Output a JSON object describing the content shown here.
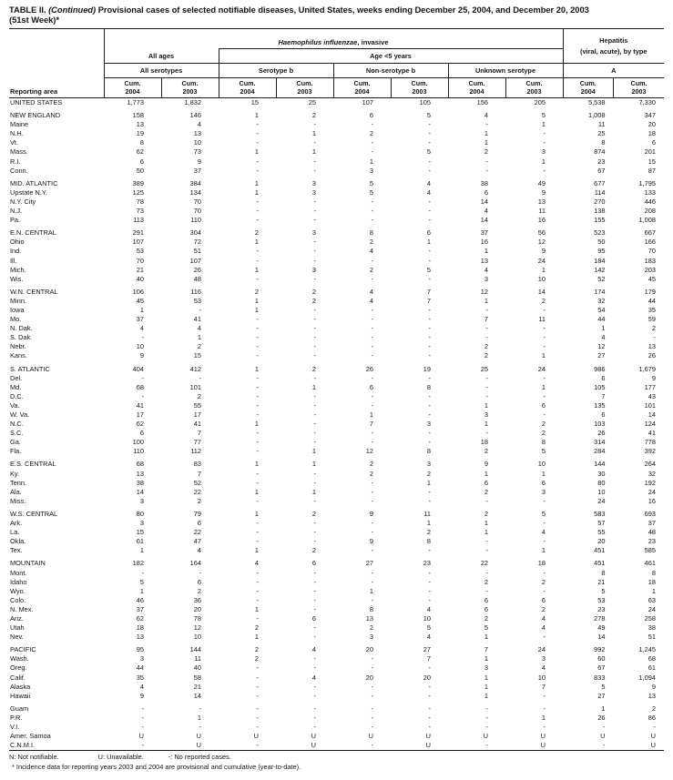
{
  "title": {
    "line1": "TABLE II. (Continued) Provisional cases of selected notifiable diseases, United States, weeks ending December 25, 2004, and December 20, 2003",
    "line1_bold_prefix": "TABLE II.",
    "line1_continued": "(Continued)",
    "line1_rest": "Provisional cases of selected notifiable diseases, United States, weeks ending December 25, 2004, and December 20, 2003",
    "line2": "(51st Week)*"
  },
  "header": {
    "reporting_area": "Reporting area",
    "hflu_italic": "Haemophilus influenzae",
    "hflu_rest": ", invasive",
    "hepatitis_line1": "Hepatitis",
    "hepatitis_line2": "(viral, acute), by type",
    "all_ages": "All ages",
    "age_under5": "Age <5 years",
    "all_serotypes": "All serotypes",
    "serotype_b": "Serotype b",
    "non_serotype_b": "Non-serotype b",
    "unknown_serotype": "Unknown serotype",
    "hep_a": "A",
    "cum_label": "Cum.",
    "cum_years": [
      "2004",
      "2003"
    ]
  },
  "rows": [
    {
      "area": "UNITED STATES",
      "gap": false,
      "values": [
        "1,773",
        "1,832",
        "15",
        "25",
        "107",
        "105",
        "156",
        "205",
        "5,538",
        "7,330"
      ]
    },
    {
      "area": "NEW ENGLAND",
      "gap": true,
      "values": [
        "158",
        "146",
        "1",
        "2",
        "6",
        "5",
        "4",
        "5",
        "1,008",
        "347"
      ]
    },
    {
      "area": "Maine",
      "gap": false,
      "values": [
        "13",
        "4",
        "-",
        "-",
        "-",
        "-",
        "-",
        "1",
        "11",
        "20"
      ]
    },
    {
      "area": "N.H.",
      "gap": false,
      "values": [
        "19",
        "13",
        "-",
        "1",
        "2",
        "-",
        "1",
        "-",
        "25",
        "18"
      ]
    },
    {
      "area": "Vt.",
      "gap": false,
      "values": [
        "8",
        "10",
        "-",
        "-",
        "-",
        "-",
        "1",
        "-",
        "8",
        "6"
      ]
    },
    {
      "area": "Mass.",
      "gap": false,
      "values": [
        "62",
        "73",
        "1",
        "1",
        "-",
        "5",
        "2",
        "3",
        "874",
        "201"
      ]
    },
    {
      "area": "R.I.",
      "gap": false,
      "values": [
        "6",
        "9",
        "-",
        "-",
        "1",
        "-",
        "-",
        "1",
        "23",
        "15"
      ]
    },
    {
      "area": "Conn.",
      "gap": false,
      "values": [
        "50",
        "37",
        "-",
        "-",
        "3",
        "-",
        "-",
        "-",
        "67",
        "87"
      ]
    },
    {
      "area": "MID. ATLANTIC",
      "gap": true,
      "values": [
        "389",
        "384",
        "1",
        "3",
        "5",
        "4",
        "38",
        "49",
        "677",
        "1,795"
      ]
    },
    {
      "area": "Upstate N.Y.",
      "gap": false,
      "values": [
        "125",
        "134",
        "1",
        "3",
        "5",
        "4",
        "6",
        "9",
        "114",
        "133"
      ]
    },
    {
      "area": "N.Y. City",
      "gap": false,
      "values": [
        "78",
        "70",
        "-",
        "-",
        "-",
        "-",
        "14",
        "13",
        "270",
        "446"
      ]
    },
    {
      "area": "N.J.",
      "gap": false,
      "values": [
        "73",
        "70",
        "-",
        "-",
        "-",
        "-",
        "4",
        "11",
        "138",
        "208"
      ]
    },
    {
      "area": "Pa.",
      "gap": false,
      "values": [
        "113",
        "110",
        "-",
        "-",
        "-",
        "-",
        "14",
        "16",
        "155",
        "1,008"
      ]
    },
    {
      "area": "E.N. CENTRAL",
      "gap": true,
      "values": [
        "291",
        "304",
        "2",
        "3",
        "8",
        "6",
        "37",
        "56",
        "523",
        "667"
      ]
    },
    {
      "area": "Ohio",
      "gap": false,
      "values": [
        "107",
        "72",
        "1",
        "-",
        "2",
        "1",
        "16",
        "12",
        "50",
        "166"
      ]
    },
    {
      "area": "Ind.",
      "gap": false,
      "values": [
        "53",
        "51",
        "-",
        "-",
        "4",
        "-",
        "1",
        "9",
        "95",
        "70"
      ]
    },
    {
      "area": "Ill.",
      "gap": false,
      "values": [
        "70",
        "107",
        "-",
        "-",
        "-",
        "-",
        "13",
        "24",
        "184",
        "183"
      ]
    },
    {
      "area": "Mich.",
      "gap": false,
      "values": [
        "21",
        "26",
        "1",
        "3",
        "2",
        "5",
        "4",
        "1",
        "142",
        "203"
      ]
    },
    {
      "area": "Wis.",
      "gap": false,
      "values": [
        "40",
        "48",
        "-",
        "-",
        "-",
        "-",
        "3",
        "10",
        "52",
        "45"
      ]
    },
    {
      "area": "W.N. CENTRAL",
      "gap": true,
      "values": [
        "106",
        "116",
        "2",
        "2",
        "4",
        "7",
        "12",
        "14",
        "174",
        "179"
      ]
    },
    {
      "area": "Minn.",
      "gap": false,
      "values": [
        "45",
        "53",
        "1",
        "2",
        "4",
        "7",
        "1",
        "2",
        "32",
        "44"
      ]
    },
    {
      "area": "Iowa",
      "gap": false,
      "values": [
        "1",
        "-",
        "1",
        "-",
        "-",
        "-",
        "-",
        "-",
        "54",
        "35"
      ]
    },
    {
      "area": "Mo.",
      "gap": false,
      "values": [
        "37",
        "41",
        "-",
        "-",
        "-",
        "-",
        "7",
        "11",
        "44",
        "59"
      ]
    },
    {
      "area": "N. Dak.",
      "gap": false,
      "values": [
        "4",
        "4",
        "-",
        "-",
        "-",
        "-",
        "-",
        "-",
        "1",
        "2"
      ]
    },
    {
      "area": "S. Dak.",
      "gap": false,
      "values": [
        "-",
        "1",
        "-",
        "-",
        "-",
        "-",
        "-",
        "-",
        "4",
        "-"
      ]
    },
    {
      "area": "Nebr.",
      "gap": false,
      "values": [
        "10",
        "2",
        "-",
        "-",
        "-",
        "-",
        "2",
        "-",
        "12",
        "13"
      ]
    },
    {
      "area": "Kans.",
      "gap": false,
      "values": [
        "9",
        "15",
        "-",
        "-",
        "-",
        "-",
        "2",
        "1",
        "27",
        "26"
      ]
    },
    {
      "area": "S. ATLANTIC",
      "gap": true,
      "values": [
        "404",
        "412",
        "1",
        "2",
        "26",
        "19",
        "25",
        "24",
        "986",
        "1,679"
      ]
    },
    {
      "area": "Del.",
      "gap": false,
      "values": [
        "-",
        "-",
        "-",
        "-",
        "-",
        "-",
        "-",
        "-",
        "6",
        "9"
      ]
    },
    {
      "area": "Md.",
      "gap": false,
      "values": [
        "68",
        "101",
        "-",
        "1",
        "6",
        "8",
        "-",
        "1",
        "105",
        "177"
      ]
    },
    {
      "area": "D.C.",
      "gap": false,
      "values": [
        "-",
        "2",
        "-",
        "-",
        "-",
        "-",
        "-",
        "-",
        "7",
        "43"
      ]
    },
    {
      "area": "Va.",
      "gap": false,
      "values": [
        "41",
        "55",
        "-",
        "-",
        "-",
        "-",
        "1",
        "6",
        "135",
        "101"
      ]
    },
    {
      "area": "W. Va.",
      "gap": false,
      "values": [
        "17",
        "17",
        "-",
        "-",
        "1",
        "-",
        "3",
        "-",
        "6",
        "14"
      ]
    },
    {
      "area": "N.C.",
      "gap": false,
      "values": [
        "62",
        "41",
        "1",
        "-",
        "7",
        "3",
        "1",
        "2",
        "103",
        "124"
      ]
    },
    {
      "area": "S.C.",
      "gap": false,
      "values": [
        "6",
        "7",
        "-",
        "-",
        "-",
        "-",
        "-",
        "2",
        "26",
        "41"
      ]
    },
    {
      "area": "Ga.",
      "gap": false,
      "values": [
        "100",
        "77",
        "-",
        "-",
        "-",
        "-",
        "18",
        "8",
        "314",
        "778"
      ]
    },
    {
      "area": "Fla.",
      "gap": false,
      "values": [
        "110",
        "112",
        "-",
        "1",
        "12",
        "8",
        "2",
        "5",
        "284",
        "392"
      ]
    },
    {
      "area": "E.S. CENTRAL",
      "gap": true,
      "values": [
        "68",
        "83",
        "1",
        "1",
        "2",
        "3",
        "9",
        "10",
        "144",
        "264"
      ]
    },
    {
      "area": "Ky.",
      "gap": false,
      "values": [
        "13",
        "7",
        "-",
        "-",
        "2",
        "2",
        "1",
        "1",
        "30",
        "32"
      ]
    },
    {
      "area": "Tenn.",
      "gap": false,
      "values": [
        "38",
        "52",
        "-",
        "-",
        "-",
        "1",
        "6",
        "6",
        "80",
        "192"
      ]
    },
    {
      "area": "Ala.",
      "gap": false,
      "values": [
        "14",
        "22",
        "1",
        "1",
        "-",
        "-",
        "2",
        "3",
        "10",
        "24"
      ]
    },
    {
      "area": "Miss.",
      "gap": false,
      "values": [
        "3",
        "2",
        "-",
        "-",
        "-",
        "-",
        "-",
        "-",
        "24",
        "16"
      ]
    },
    {
      "area": "W.S. CENTRAL",
      "gap": true,
      "values": [
        "80",
        "79",
        "1",
        "2",
        "9",
        "11",
        "2",
        "5",
        "583",
        "693"
      ]
    },
    {
      "area": "Ark.",
      "gap": false,
      "values": [
        "3",
        "6",
        "-",
        "-",
        "-",
        "1",
        "1",
        "-",
        "57",
        "37"
      ]
    },
    {
      "area": "La.",
      "gap": false,
      "values": [
        "15",
        "22",
        "-",
        "-",
        "-",
        "2",
        "1",
        "4",
        "55",
        "48"
      ]
    },
    {
      "area": "Okla.",
      "gap": false,
      "values": [
        "61",
        "47",
        "-",
        "-",
        "9",
        "8",
        "-",
        "-",
        "20",
        "23"
      ]
    },
    {
      "area": "Tex.",
      "gap": false,
      "values": [
        "1",
        "4",
        "1",
        "2",
        "-",
        "-",
        "-",
        "1",
        "451",
        "585"
      ]
    },
    {
      "area": "MOUNTAIN",
      "gap": true,
      "values": [
        "182",
        "164",
        "4",
        "6",
        "27",
        "23",
        "22",
        "18",
        "451",
        "461"
      ]
    },
    {
      "area": "Mont.",
      "gap": false,
      "values": [
        "-",
        "-",
        "-",
        "-",
        "-",
        "-",
        "-",
        "-",
        "8",
        "8"
      ]
    },
    {
      "area": "Idaho",
      "gap": false,
      "values": [
        "5",
        "6",
        "-",
        "-",
        "-",
        "-",
        "2",
        "2",
        "21",
        "18"
      ]
    },
    {
      "area": "Wyo.",
      "gap": false,
      "values": [
        "1",
        "2",
        "-",
        "-",
        "1",
        "-",
        "-",
        "-",
        "5",
        "1"
      ]
    },
    {
      "area": "Colo.",
      "gap": false,
      "values": [
        "46",
        "36",
        "-",
        "-",
        "-",
        "-",
        "6",
        "6",
        "53",
        "63"
      ]
    },
    {
      "area": "N. Mex.",
      "gap": false,
      "values": [
        "37",
        "20",
        "1",
        "-",
        "8",
        "4",
        "6",
        "2",
        "23",
        "24"
      ]
    },
    {
      "area": "Ariz.",
      "gap": false,
      "values": [
        "62",
        "78",
        "-",
        "6",
        "13",
        "10",
        "2",
        "4",
        "278",
        "258"
      ]
    },
    {
      "area": "Utah",
      "gap": false,
      "values": [
        "18",
        "12",
        "2",
        "-",
        "2",
        "5",
        "5",
        "4",
        "49",
        "38"
      ]
    },
    {
      "area": "Nev.",
      "gap": false,
      "values": [
        "13",
        "10",
        "1",
        "-",
        "3",
        "4",
        "1",
        "-",
        "14",
        "51"
      ]
    },
    {
      "area": "PACIFIC",
      "gap": true,
      "values": [
        "95",
        "144",
        "2",
        "4",
        "20",
        "27",
        "7",
        "24",
        "992",
        "1,245"
      ]
    },
    {
      "area": "Wash.",
      "gap": false,
      "values": [
        "3",
        "11",
        "2",
        "-",
        "-",
        "7",
        "1",
        "3",
        "60",
        "68"
      ]
    },
    {
      "area": "Oreg.",
      "gap": false,
      "values": [
        "44",
        "40",
        "-",
        "-",
        "-",
        "-",
        "3",
        "4",
        "67",
        "61"
      ]
    },
    {
      "area": "Calif.",
      "gap": false,
      "values": [
        "35",
        "58",
        "-",
        "4",
        "20",
        "20",
        "1",
        "10",
        "833",
        "1,094"
      ]
    },
    {
      "area": "Alaska",
      "gap": false,
      "values": [
        "4",
        "21",
        "-",
        "-",
        "-",
        "-",
        "1",
        "7",
        "5",
        "9"
      ]
    },
    {
      "area": "Hawaii",
      "gap": false,
      "values": [
        "9",
        "14",
        "-",
        "-",
        "-",
        "-",
        "1",
        "-",
        "27",
        "13"
      ]
    },
    {
      "area": "Guam",
      "gap": true,
      "values": [
        "-",
        "-",
        "-",
        "-",
        "-",
        "-",
        "-",
        "-",
        "1",
        "2"
      ]
    },
    {
      "area": "P.R.",
      "gap": false,
      "values": [
        "-",
        "1",
        "-",
        "-",
        "-",
        "-",
        "-",
        "1",
        "26",
        "86"
      ]
    },
    {
      "area": "V.I.",
      "gap": false,
      "values": [
        "-",
        "-",
        "-",
        "-",
        "-",
        "-",
        "-",
        "-",
        "-",
        "-"
      ]
    },
    {
      "area": "Amer. Samoa",
      "gap": false,
      "values": [
        "U",
        "U",
        "U",
        "U",
        "U",
        "U",
        "U",
        "U",
        "U",
        "U"
      ]
    },
    {
      "area": "C.N.M.I.",
      "gap": false,
      "values": [
        "-",
        "U",
        "-",
        "U",
        "-",
        "U",
        "-",
        "U",
        "-",
        "U"
      ]
    }
  ],
  "footnotes": {
    "n": "N: Not notifiable.",
    "u": "U: Unavailable.",
    "dash": "-: No reported cases.",
    "star": "* Incidence data for reporting years 2003 and 2004 are provisional and cumulative (year-to-date)."
  }
}
